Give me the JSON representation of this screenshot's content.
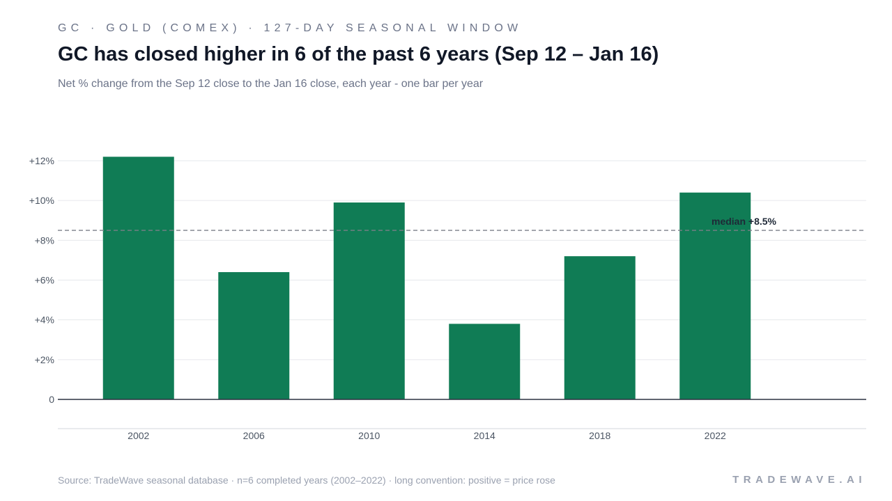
{
  "header": {
    "kicker": "GC · GOLD (COMEX) · 127-DAY SEASONAL WINDOW",
    "title": "GC has closed higher in 6 of the past 6 years (Sep 12 – Jan 16)",
    "subtitle": "Net % change from the Sep 12 close to the Jan 16 close, each year - one bar per year"
  },
  "footer": {
    "source": "Source: TradeWave seasonal database · n=6 completed years (2002–2022) · long convention: positive = price rose",
    "brand": "TRADEWAVE.AI"
  },
  "chart_data": {
    "type": "bar",
    "categories": [
      "2002",
      "2006",
      "2010",
      "2014",
      "2018",
      "2022"
    ],
    "values": [
      12.2,
      6.4,
      9.9,
      3.8,
      7.2,
      10.4
    ],
    "unit": "%",
    "ylim": [
      0,
      12
    ],
    "yticks": [
      0,
      2,
      4,
      6,
      8,
      10,
      12
    ],
    "ytick_labels": [
      "0",
      "+2%",
      "+4%",
      "+6%",
      "+8%",
      "+10%",
      "+12%"
    ],
    "median": 8.5,
    "median_label": "median +8.5%",
    "grid": true,
    "bar_color": "#107c55",
    "xlabel": "",
    "ylabel": ""
  }
}
